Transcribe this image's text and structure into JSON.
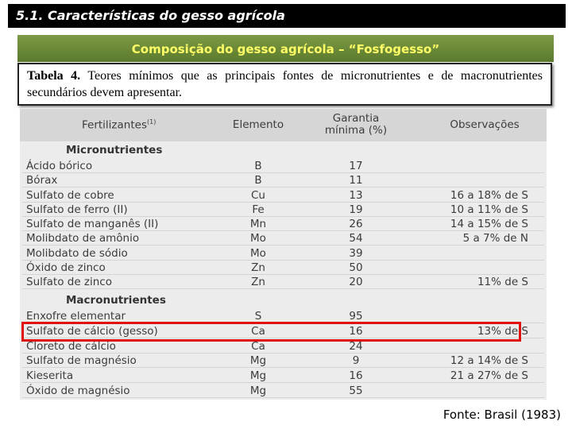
{
  "header": {
    "title": "5.1. Características do gesso agrícola"
  },
  "banner": {
    "title": "Composição do gesso agrícola – “Fosfogesso”"
  },
  "caption": {
    "label": "Tabela 4.",
    "text": "Teores mínimos que as principais fontes de micronutrientes e de macronutrientes secundários devem apresentar."
  },
  "table": {
    "columns": [
      "Fertilizantes",
      "Elemento",
      "Garantia mínima (%)",
      "Observações"
    ],
    "column_note": "(1)",
    "sections": [
      {
        "title": "Micronutrientes",
        "rows": [
          [
            "Ácido bórico",
            "B",
            17
          ],
          [
            "Bórax",
            "B",
            11
          ],
          [
            "Sulfato de cobre",
            "Cu",
            13,
            "16 a 18% de S"
          ],
          [
            "Sulfato de ferro (II)",
            "Fe",
            19,
            "10 a 11% de S"
          ],
          [
            "Sulfato de manganês (II)",
            "Mn",
            26,
            "14 a 15% de S"
          ],
          [
            "Molibdato de amônio",
            "Mo",
            54,
            "5 a 7% de N"
          ],
          [
            "Molibdato de sódio",
            "Mo",
            39
          ],
          [
            "Óxido de zinco",
            "Zn",
            50
          ],
          [
            "Sulfato de zinco",
            "Zn",
            20,
            "11% de S"
          ]
        ]
      },
      {
        "title": "Macronutrientes",
        "rows": [
          [
            "Enxofre elementar",
            "S",
            95
          ],
          [
            "Sulfato de cálcio (gesso)",
            "Ca",
            16,
            "13% de S"
          ],
          [
            "Cloreto de cálcio",
            "Ca",
            24
          ],
          [
            "Sulfato de magnésio",
            "Mg",
            9,
            "12 a 14% de S"
          ],
          [
            "Kieserita",
            "Mg",
            16,
            "21 a 27% de S"
          ],
          [
            "Óxido de magnésio",
            "Mg",
            55
          ]
        ]
      }
    ]
  },
  "source": "Fonte: Brasil (1983)"
}
